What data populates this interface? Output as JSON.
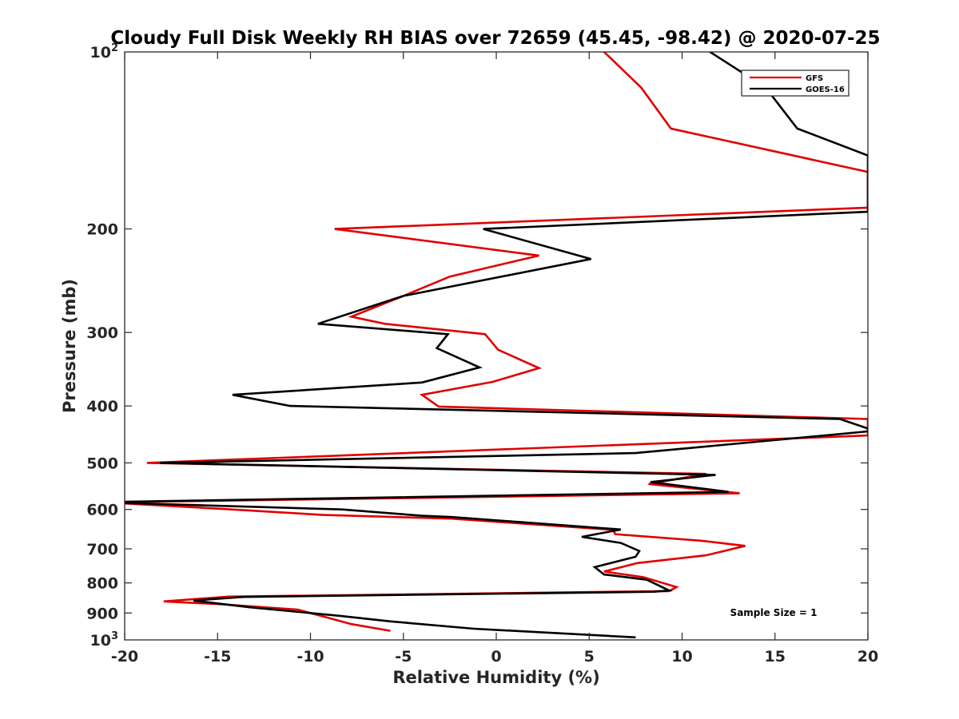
{
  "chart_data": {
    "type": "line",
    "title": "Cloudy Full Disk Weekly RH BIAS over 72659 (45.45, -98.42) @ 2020-07-25",
    "xlabel": "Relative Humidity (%)",
    "ylabel": "Pressure (mb)",
    "xlim": [
      -20,
      20
    ],
    "ylim": [
      100,
      1000
    ],
    "y_scale": "log",
    "y_reversed": true,
    "grid": false,
    "legend_position": "top-right",
    "x_ticks": [
      -20,
      -15,
      -10,
      -5,
      0,
      5,
      10,
      15,
      20
    ],
    "x_tick_labels": [
      "-20",
      "-15",
      "-10",
      "-5",
      "0",
      "5",
      "10",
      "15",
      "20"
    ],
    "y_ticks": [
      200,
      300,
      400,
      500,
      600,
      700,
      800,
      900
    ],
    "y_tick_labels": [
      "200",
      "300",
      "400",
      "500",
      "600",
      "700",
      "800",
      "900"
    ],
    "y_end_labels": [
      {
        "value": 100,
        "base": "10",
        "exp": "2"
      },
      {
        "value": 1000,
        "base": "10",
        "exp": "3"
      }
    ],
    "series": [
      {
        "name": "GFS",
        "color": "#e00000",
        "points": [
          [
            5.8,
            100
          ],
          [
            7.8,
            115
          ],
          [
            9.4,
            135
          ],
          [
            20,
            160
          ],
          [
            20,
            184
          ],
          [
            -8.7,
            200
          ],
          [
            2.3,
            222
          ],
          [
            -2.5,
            241
          ],
          [
            -5.0,
            260
          ],
          [
            -7.8,
            282
          ],
          [
            -6.0,
            290
          ],
          [
            -0.6,
            302
          ],
          [
            0.1,
            321
          ],
          [
            2.3,
            345
          ],
          [
            -0.2,
            364
          ],
          [
            -4.0,
            383
          ],
          [
            -3.1,
            401
          ],
          [
            20,
            421
          ],
          [
            20,
            449
          ],
          [
            -18.8,
            500
          ],
          [
            11.3,
            522
          ],
          [
            8.2,
            543
          ],
          [
            13.1,
            563
          ],
          [
            -20,
            583
          ],
          [
            -20,
            586
          ],
          [
            -14.6,
            599
          ],
          [
            -9.3,
            613
          ],
          [
            -2.4,
            622
          ],
          [
            6.3,
            650
          ],
          [
            6.4,
            661
          ],
          [
            11.0,
            678
          ],
          [
            13.4,
            692
          ],
          [
            11.3,
            718
          ],
          [
            7.6,
            740
          ],
          [
            5.8,
            765
          ],
          [
            7.9,
            782
          ],
          [
            9.7,
            813
          ],
          [
            9.3,
            826
          ],
          [
            -14.4,
            844
          ],
          [
            -17.9,
            860
          ],
          [
            -14.7,
            870
          ],
          [
            -10.7,
            888
          ],
          [
            -9.1,
            916
          ],
          [
            -7.8,
            940
          ],
          [
            -5.7,
            965
          ]
        ]
      },
      {
        "name": "GOES-16",
        "color": "#000000",
        "points": [
          [
            11.5,
            100
          ],
          [
            14.5,
            115
          ],
          [
            16.2,
            135
          ],
          [
            20,
            150
          ],
          [
            20,
            187
          ],
          [
            -0.7,
            200
          ],
          [
            5.1,
            225
          ],
          [
            -5.0,
            260
          ],
          [
            -9.6,
            290
          ],
          [
            -2.6,
            302
          ],
          [
            -3.2,
            319
          ],
          [
            -0.9,
            344
          ],
          [
            -4.0,
            365
          ],
          [
            -14.2,
            383
          ],
          [
            -11.1,
            400
          ],
          [
            18.5,
            421
          ],
          [
            20,
            437
          ],
          [
            20,
            442
          ],
          [
            7.5,
            481
          ],
          [
            -18.1,
            500
          ],
          [
            11.8,
            524
          ],
          [
            8.3,
            539
          ],
          [
            12.5,
            560
          ],
          [
            -20,
            582
          ],
          [
            -20,
            585
          ],
          [
            -8.3,
            600
          ],
          [
            -4.0,
            615
          ],
          [
            -2.4,
            618
          ],
          [
            6.7,
            649
          ],
          [
            4.6,
            668
          ],
          [
            6.7,
            684
          ],
          [
            7.7,
            706
          ],
          [
            7.5,
            722
          ],
          [
            5.3,
            752
          ],
          [
            5.8,
            774
          ],
          [
            8.1,
            790
          ],
          [
            9.3,
            824
          ],
          [
            8.5,
            828
          ],
          [
            -13.6,
            845
          ],
          [
            -16.3,
            857
          ],
          [
            -13.3,
            880
          ],
          [
            -8.4,
            910
          ],
          [
            -5.7,
            930
          ],
          [
            -1.2,
            957
          ],
          [
            7.5,
            990
          ]
        ]
      }
    ],
    "annotation": "Sample Size = 1"
  }
}
